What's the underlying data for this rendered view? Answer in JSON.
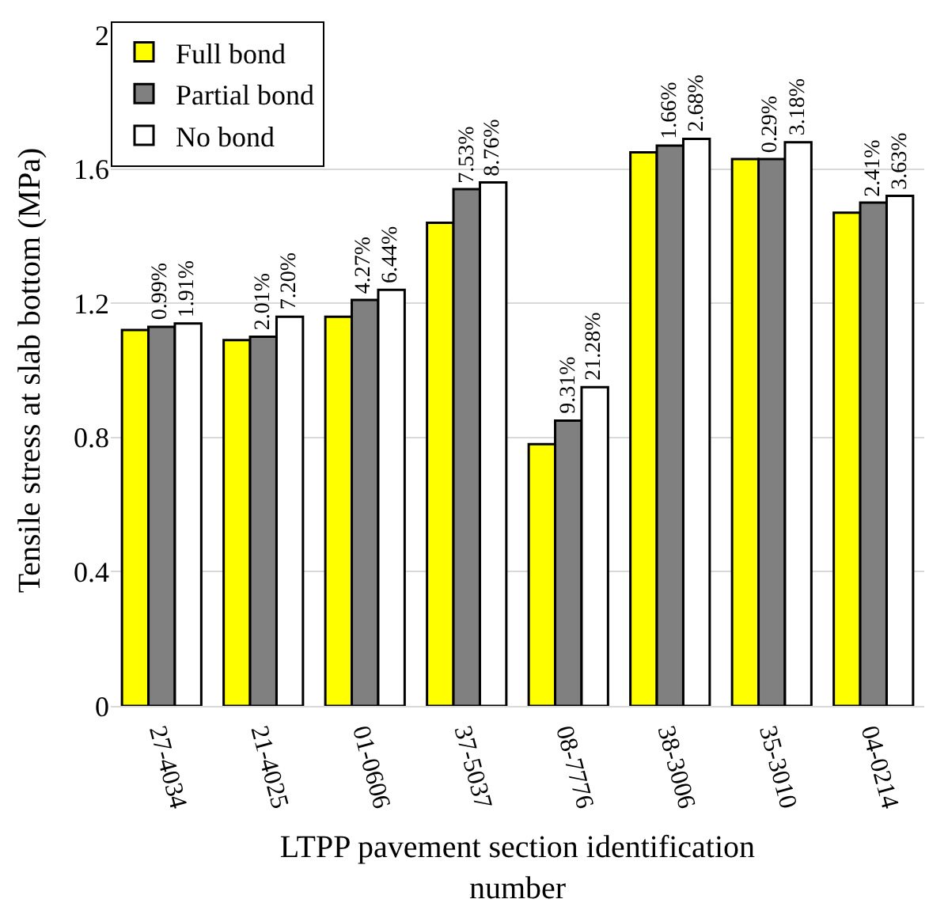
{
  "chart_data": {
    "type": "bar",
    "xlabel": "LTPP pavement section identification number",
    "ylabel": "Tensile stress at slab bottom (MPa)",
    "categories": [
      "27-4034",
      "21-4025",
      "01-0606",
      "37-5037",
      "08-7776",
      "38-3006",
      "35-3010",
      "04-0214"
    ],
    "series": [
      {
        "name": "Full bond",
        "color": "#ffff00",
        "values": [
          1.12,
          1.09,
          1.16,
          1.44,
          0.78,
          1.65,
          1.63,
          1.47
        ]
      },
      {
        "name": "Partial bond",
        "color": "#808080",
        "values": [
          1.13,
          1.1,
          1.21,
          1.54,
          0.85,
          1.67,
          1.63,
          1.5
        ]
      },
      {
        "name": "No bond",
        "color": "#ffffff",
        "values": [
          1.14,
          1.16,
          1.24,
          1.56,
          0.95,
          1.69,
          1.68,
          1.52
        ]
      }
    ],
    "annotations": [
      {
        "text": "0.99%",
        "x": "27-4034",
        "y": 1.13
      },
      {
        "text": "1.91%",
        "x": "27-4034",
        "y": 1.14
      },
      {
        "text": "2.01%",
        "x": "21-4025",
        "y": 1.1
      },
      {
        "text": "7.20%",
        "x": "21-4025",
        "y": 1.16
      },
      {
        "text": "4.27%",
        "x": "01-0606",
        "y": 1.21
      },
      {
        "text": "6.44%",
        "x": "01-0606",
        "y": 1.24
      },
      {
        "text": "7.53%",
        "x": "37-5037",
        "y": 1.54
      },
      {
        "text": "8.76%",
        "x": "37-5037",
        "y": 1.56
      },
      {
        "text": "9.31%",
        "x": "08-7776",
        "y": 0.85
      },
      {
        "text": "21.28%",
        "x": "08-7776",
        "y": 0.95
      },
      {
        "text": "1.66%",
        "x": "38-3006",
        "y": 1.67
      },
      {
        "text": "2.68%",
        "x": "38-3006",
        "y": 1.69
      },
      {
        "text": "0.29%",
        "x": "35-3010",
        "y": 1.63
      },
      {
        "text": "3.18%",
        "x": "35-3010",
        "y": 1.68
      },
      {
        "text": "2.41%",
        "x": "04-0214",
        "y": 1.5
      },
      {
        "text": "3.63%",
        "x": "04-0214",
        "y": 1.52
      }
    ],
    "ylim": [
      0,
      2
    ],
    "yticks": [
      0,
      0.4,
      0.8,
      1.2,
      1.6,
      2
    ],
    "grid": "y",
    "legend": "top left"
  }
}
